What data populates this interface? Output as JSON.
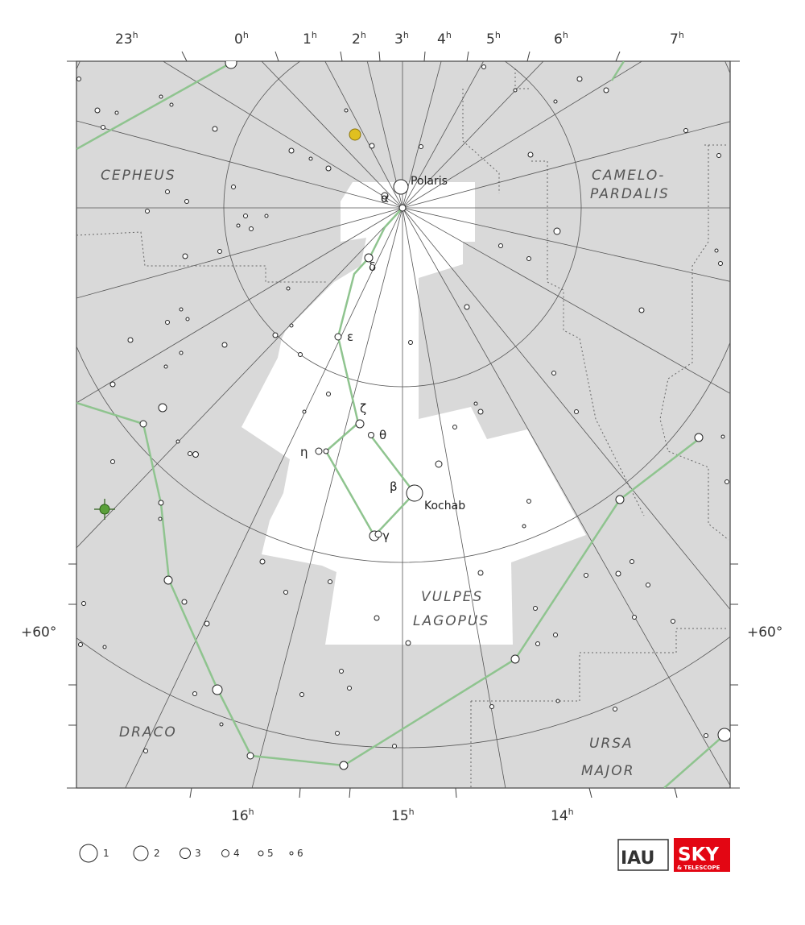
{
  "ra_top": [
    {
      "h": "23",
      "sup": "h"
    },
    {
      "h": "0",
      "sup": "h"
    },
    {
      "h": "1",
      "sup": "h"
    },
    {
      "h": "2",
      "sup": "h"
    },
    {
      "h": "3",
      "sup": "h"
    },
    {
      "h": "4",
      "sup": "h"
    },
    {
      "h": "5",
      "sup": "h"
    },
    {
      "h": "6",
      "sup": "h"
    },
    {
      "h": "7",
      "sup": "h"
    }
  ],
  "ra_bottom": [
    {
      "h": "16",
      "sup": "h"
    },
    {
      "h": "15",
      "sup": "h"
    },
    {
      "h": "14",
      "sup": "h"
    }
  ],
  "dec_labels": {
    "left": "+60°",
    "right": "+60°"
  },
  "constellations": {
    "cepheus": "CEPHEUS",
    "camelopardalis_1": "CAMELO-",
    "camelopardalis_2": "PARDALIS",
    "vulpes_1": "VULPES",
    "vulpes_2": "LAGOPUS",
    "draco": "DRACO",
    "ursa_1": "URSA",
    "ursa_2": "MAJOR"
  },
  "star_names": {
    "polaris": "Polaris",
    "kochab": "Kochab"
  },
  "greek": {
    "alpha": "α",
    "delta": "δ",
    "epsilon": "ε",
    "zeta": "ζ",
    "theta": "θ",
    "eta": "η",
    "beta": "β",
    "gamma": "γ"
  },
  "legend": [
    "1",
    "2",
    "3",
    "4",
    "5",
    "6"
  ],
  "logos": {
    "iau": "IAU",
    "sky": "SKY",
    "telescope": "& TELESCOPE"
  },
  "colors": {
    "sky_gray": "#d9d9d9",
    "lines": "#555555",
    "stick": "#8fc48f",
    "logo_red": "#e30613",
    "planet_yellow": "#e0c020",
    "green_star": "#5aa03a"
  }
}
